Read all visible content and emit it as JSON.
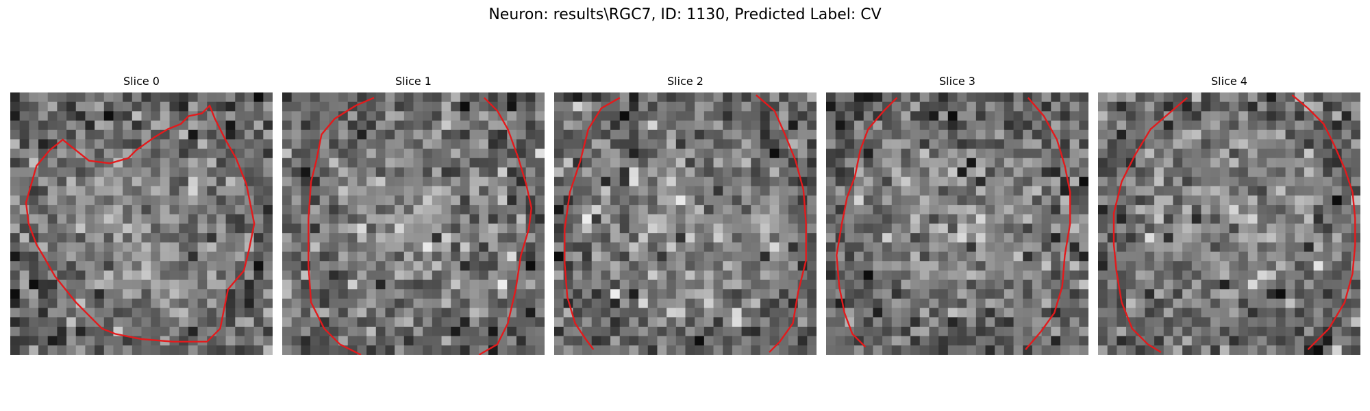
{
  "title": "Neuron: results\\RGC7, ID: 1130, Predicted Label: CV",
  "panels": [
    {
      "label": "Slice 0",
      "contour": [
        [
          0.75,
          0.95
        ],
        [
          0.8,
          0.9
        ],
        [
          0.83,
          0.75
        ],
        [
          0.89,
          0.68
        ],
        [
          0.91,
          0.6
        ],
        [
          0.93,
          0.5
        ],
        [
          0.9,
          0.35
        ],
        [
          0.86,
          0.25
        ],
        [
          0.82,
          0.18
        ],
        [
          0.78,
          0.1
        ],
        [
          0.76,
          0.05
        ],
        [
          0.73,
          0.08
        ],
        [
          0.68,
          0.09
        ],
        [
          0.65,
          0.12
        ],
        [
          0.6,
          0.14
        ],
        [
          0.55,
          0.17
        ],
        [
          0.48,
          0.22
        ],
        [
          0.45,
          0.25
        ],
        [
          0.38,
          0.27
        ],
        [
          0.3,
          0.26
        ],
        [
          0.25,
          0.22
        ],
        [
          0.2,
          0.18
        ],
        [
          0.15,
          0.22
        ],
        [
          0.1,
          0.28
        ],
        [
          0.08,
          0.35
        ],
        [
          0.06,
          0.42
        ],
        [
          0.07,
          0.5
        ],
        [
          0.1,
          0.58
        ],
        [
          0.13,
          0.63
        ],
        [
          0.17,
          0.7
        ],
        [
          0.21,
          0.75
        ],
        [
          0.25,
          0.8
        ],
        [
          0.3,
          0.85
        ],
        [
          0.35,
          0.9
        ],
        [
          0.4,
          0.92
        ],
        [
          0.5,
          0.94
        ],
        [
          0.62,
          0.95
        ],
        [
          0.75,
          0.95
        ]
      ]
    },
    {
      "label": "Slice 1",
      "contour": [
        [
          0.35,
          0.02
        ],
        [
          0.28,
          0.05
        ],
        [
          0.2,
          0.1
        ],
        [
          0.15,
          0.16
        ],
        [
          0.13,
          0.26
        ],
        [
          0.11,
          0.34
        ],
        [
          0.1,
          0.48
        ],
        [
          0.1,
          0.66
        ],
        [
          0.11,
          0.8
        ],
        [
          0.16,
          0.9
        ],
        [
          0.22,
          0.96
        ],
        [
          0.3,
          1.0
        ]
      ],
      "contour2": [
        [
          0.77,
          0.02
        ],
        [
          0.82,
          0.07
        ],
        [
          0.86,
          0.14
        ],
        [
          0.9,
          0.25
        ],
        [
          0.93,
          0.35
        ],
        [
          0.95,
          0.44
        ],
        [
          0.94,
          0.52
        ],
        [
          0.91,
          0.62
        ],
        [
          0.89,
          0.75
        ],
        [
          0.86,
          0.88
        ],
        [
          0.82,
          0.96
        ],
        [
          0.75,
          1.0
        ]
      ]
    },
    {
      "label": "Slice 2",
      "contour": [
        [
          0.25,
          0.02
        ],
        [
          0.18,
          0.06
        ],
        [
          0.13,
          0.14
        ],
        [
          0.1,
          0.26
        ],
        [
          0.06,
          0.38
        ],
        [
          0.04,
          0.52
        ],
        [
          0.04,
          0.65
        ],
        [
          0.05,
          0.78
        ],
        [
          0.08,
          0.88
        ],
        [
          0.12,
          0.94
        ],
        [
          0.15,
          0.98
        ]
      ],
      "contour2": [
        [
          0.77,
          0.01
        ],
        [
          0.84,
          0.07
        ],
        [
          0.88,
          0.16
        ],
        [
          0.92,
          0.26
        ],
        [
          0.95,
          0.37
        ],
        [
          0.96,
          0.5
        ],
        [
          0.96,
          0.64
        ],
        [
          0.93,
          0.76
        ],
        [
          0.91,
          0.88
        ],
        [
          0.86,
          0.95
        ],
        [
          0.82,
          0.99
        ]
      ]
    },
    {
      "label": "Slice 3",
      "contour": [
        [
          0.27,
          0.02
        ],
        [
          0.22,
          0.07
        ],
        [
          0.16,
          0.14
        ],
        [
          0.13,
          0.22
        ],
        [
          0.11,
          0.32
        ],
        [
          0.08,
          0.4
        ],
        [
          0.06,
          0.5
        ],
        [
          0.04,
          0.62
        ],
        [
          0.05,
          0.74
        ],
        [
          0.07,
          0.84
        ],
        [
          0.1,
          0.92
        ],
        [
          0.15,
          0.97
        ]
      ],
      "contour2": [
        [
          0.77,
          0.02
        ],
        [
          0.83,
          0.09
        ],
        [
          0.88,
          0.18
        ],
        [
          0.91,
          0.28
        ],
        [
          0.93,
          0.38
        ],
        [
          0.93,
          0.5
        ],
        [
          0.91,
          0.62
        ],
        [
          0.9,
          0.74
        ],
        [
          0.87,
          0.84
        ],
        [
          0.82,
          0.91
        ],
        [
          0.76,
          0.98
        ]
      ]
    },
    {
      "label": "Slice 4",
      "contour": [
        [
          0.34,
          0.02
        ],
        [
          0.27,
          0.08
        ],
        [
          0.2,
          0.14
        ],
        [
          0.14,
          0.24
        ],
        [
          0.09,
          0.34
        ],
        [
          0.06,
          0.46
        ],
        [
          0.06,
          0.58
        ],
        [
          0.07,
          0.68
        ],
        [
          0.09,
          0.8
        ],
        [
          0.13,
          0.9
        ],
        [
          0.19,
          0.96
        ],
        [
          0.24,
          0.99
        ]
      ],
      "contour2": [
        [
          0.74,
          0.01
        ],
        [
          0.8,
          0.06
        ],
        [
          0.86,
          0.12
        ],
        [
          0.9,
          0.2
        ],
        [
          0.94,
          0.29
        ],
        [
          0.97,
          0.38
        ],
        [
          0.98,
          0.48
        ],
        [
          0.98,
          0.58
        ],
        [
          0.97,
          0.69
        ],
        [
          0.94,
          0.8
        ],
        [
          0.88,
          0.9
        ],
        [
          0.8,
          0.98
        ]
      ]
    }
  ],
  "colors": {
    "contour": "#e31a1c"
  }
}
